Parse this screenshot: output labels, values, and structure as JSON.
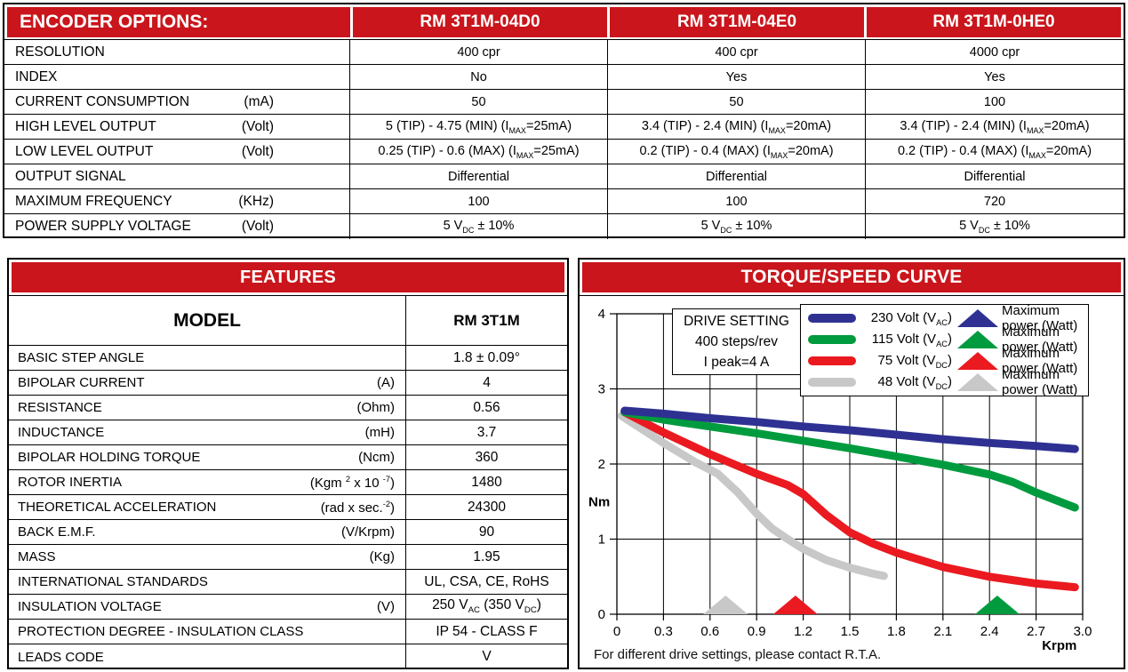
{
  "colors": {
    "header_red": "#C9151B"
  },
  "encoder": {
    "title": "ENCODER OPTIONS:",
    "models": [
      "RM 3T1M-04D0",
      "RM 3T1M-04E0",
      "RM 3T1M-0HE0"
    ],
    "rows": [
      {
        "label": "RESOLUTION",
        "unit": "",
        "values": [
          "400 cpr",
          "400 cpr",
          "4000 cpr"
        ]
      },
      {
        "label": "INDEX",
        "unit": "",
        "values": [
          "No",
          "Yes",
          "Yes"
        ]
      },
      {
        "label": "CURRENT CONSUMPTION",
        "unit": "(mA)",
        "values": [
          "50",
          "50",
          "100"
        ]
      },
      {
        "label": "HIGH LEVEL OUTPUT",
        "unit": "(Volt)",
        "values": [
          "5 (TIP) - 4.75 (MIN) (I~MAX~=25mA)",
          "3.4 (TIP) - 2.4 (MIN) (I~MAX~=20mA)",
          "3.4 (TIP) - 2.4 (MIN) (I~MAX~=20mA)"
        ]
      },
      {
        "label": "LOW LEVEL OUTPUT",
        "unit": "(Volt)",
        "values": [
          "0.25 (TIP) - 0.6 (MAX) (I~MAX~=25mA)",
          "0.2 (TIP) - 0.4 (MAX) (I~MAX~=20mA)",
          "0.2 (TIP) - 0.4 (MAX) (I~MAX~=20mA)"
        ]
      },
      {
        "label": "OUTPUT SIGNAL",
        "unit": "",
        "values": [
          "Differential",
          "Differential",
          "Differential"
        ]
      },
      {
        "label": "MAXIMUM FREQUENCY",
        "unit": "(KHz)",
        "values": [
          "100",
          "100",
          "720"
        ]
      },
      {
        "label": "POWER SUPPLY VOLTAGE",
        "unit": "(Volt)",
        "values": [
          "5 V~DC~ ± 10%",
          "5 V~DC~ ± 10%",
          "5 V~DC~ ± 10%"
        ]
      }
    ]
  },
  "features": {
    "title": "FEATURES",
    "model_label": "MODEL",
    "model_value": "RM 3T1M",
    "rows": [
      {
        "label": "BASIC STEP ANGLE",
        "unit": "",
        "value": "1.8 ± 0.09°"
      },
      {
        "label": "BIPOLAR CURRENT",
        "unit": "(A)",
        "value": "4"
      },
      {
        "label": "RESISTANCE",
        "unit": "(Ohm)",
        "value": "0.56"
      },
      {
        "label": "INDUCTANCE",
        "unit": "(mH)",
        "value": "3.7"
      },
      {
        "label": "BIPOLAR HOLDING TORQUE",
        "unit": "(Ncm)",
        "value": "360"
      },
      {
        "label": "ROTOR INERTIA",
        "unit": "(Kgm ^2^ x 10 ^-7^)",
        "value": "1480"
      },
      {
        "label": "THEORETICAL ACCELERATION",
        "unit": "(rad x sec.^-2^)",
        "value": "24300"
      },
      {
        "label": "BACK E.M.F.",
        "unit": "(V/Krpm)",
        "value": "90"
      },
      {
        "label": "MASS",
        "unit": "(Kg)",
        "value": "1.95"
      },
      {
        "label": "INTERNATIONAL STANDARDS",
        "unit": "",
        "value": "UL, CSA, CE, RoHS"
      },
      {
        "label": "INSULATION VOLTAGE",
        "unit": "(V)",
        "value": "250 V~AC~ (350 V~DC~)"
      },
      {
        "label": "PROTECTION DEGREE - INSULATION CLASS",
        "unit": "",
        "value": "IP 54 - CLASS F"
      },
      {
        "label": "LEADS CODE",
        "unit": "",
        "value": "V"
      }
    ]
  },
  "chart_data": {
    "type": "line",
    "title": "TORQUE/SPEED CURVE",
    "xlabel": "Krpm",
    "ylabel": "Nm",
    "xlim": [
      0,
      3.0
    ],
    "ylim": [
      0,
      4
    ],
    "xticks": [
      0,
      0.3,
      0.6,
      0.9,
      1.2,
      1.5,
      1.8,
      2.1,
      2.4,
      2.7,
      3.0
    ],
    "yticks": [
      0,
      1,
      2,
      3,
      4
    ],
    "grid": true,
    "drive_setting": [
      "DRIVE SETTING",
      "400 steps/rev",
      "I peak=4 A"
    ],
    "footer": "For different drive settings, please contact R.T.A.",
    "series": [
      {
        "name": "230 Volt (VAC)",
        "color": "#2E3192",
        "points": [
          [
            0.05,
            2.71
          ],
          [
            0.3,
            2.67
          ],
          [
            0.6,
            2.61
          ],
          [
            0.9,
            2.56
          ],
          [
            1.2,
            2.5
          ],
          [
            1.5,
            2.45
          ],
          [
            1.8,
            2.39
          ],
          [
            2.1,
            2.33
          ],
          [
            2.4,
            2.28
          ],
          [
            2.7,
            2.24
          ],
          [
            2.95,
            2.2
          ]
        ]
      },
      {
        "name": "115 Volt (VAC)",
        "color": "#009B3E",
        "points": [
          [
            0.05,
            2.69
          ],
          [
            0.3,
            2.59
          ],
          [
            0.6,
            2.5
          ],
          [
            0.9,
            2.41
          ],
          [
            1.2,
            2.31
          ],
          [
            1.5,
            2.21
          ],
          [
            1.8,
            2.1
          ],
          [
            2.1,
            1.99
          ],
          [
            2.4,
            1.86
          ],
          [
            2.55,
            1.76
          ],
          [
            2.7,
            1.62
          ],
          [
            2.95,
            1.42
          ]
        ]
      },
      {
        "name": "75 Volt (VDC)",
        "color": "#EA1A20",
        "points": [
          [
            0.05,
            2.69
          ],
          [
            0.3,
            2.42
          ],
          [
            0.6,
            2.13
          ],
          [
            0.9,
            1.87
          ],
          [
            1.1,
            1.72
          ],
          [
            1.2,
            1.6
          ],
          [
            1.35,
            1.32
          ],
          [
            1.5,
            1.09
          ],
          [
            1.65,
            0.94
          ],
          [
            1.8,
            0.82
          ],
          [
            2.1,
            0.63
          ],
          [
            2.4,
            0.5
          ],
          [
            2.7,
            0.41
          ],
          [
            2.95,
            0.36
          ]
        ]
      },
      {
        "name": "48 Volt (VDC)",
        "color": "#C8C8C8",
        "points": [
          [
            0.03,
            2.64
          ],
          [
            0.3,
            2.28
          ],
          [
            0.5,
            2.03
          ],
          [
            0.65,
            1.87
          ],
          [
            0.78,
            1.62
          ],
          [
            0.9,
            1.34
          ],
          [
            1.0,
            1.14
          ],
          [
            1.1,
            1.0
          ],
          [
            1.2,
            0.87
          ],
          [
            1.35,
            0.72
          ],
          [
            1.5,
            0.62
          ],
          [
            1.65,
            0.54
          ],
          [
            1.72,
            0.51
          ]
        ]
      }
    ],
    "max_power_markers": [
      {
        "x": 0.7,
        "color": "#C8C8C8"
      },
      {
        "x": 1.15,
        "color": "#EA1A20"
      },
      {
        "x": 2.45,
        "color": "#009B3E"
      }
    ],
    "legend": [
      {
        "line_label": "230 Volt (V~AC~)",
        "color": "#2E3192",
        "power_label": "Maximum power (Watt)"
      },
      {
        "line_label": "115 Volt (V~AC~)",
        "color": "#009B3E",
        "power_label": "Maximum power (Watt)"
      },
      {
        "line_label": "75 Volt (V~DC~)",
        "color": "#EA1A20",
        "power_label": "Maximum power (Watt)"
      },
      {
        "line_label": "48 Volt (V~DC~)",
        "color": "#C8C8C8",
        "power_label": "Maximum power (Watt)"
      }
    ],
    "legend_position": "top-right"
  }
}
